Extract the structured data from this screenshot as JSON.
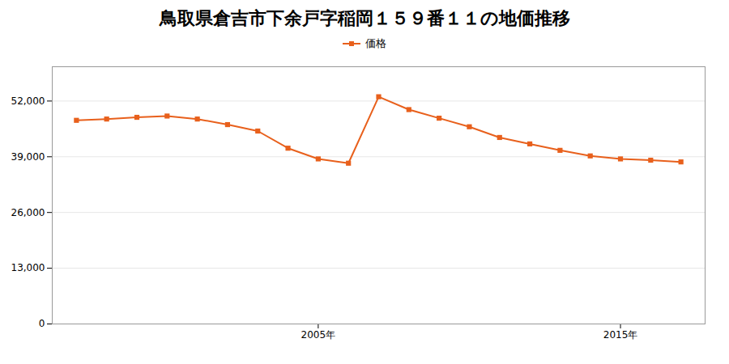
{
  "chart_data": {
    "type": "line",
    "title": "鳥取県倉吉市下余戸字稲岡１５９番１１の地価推移",
    "x": [
      1997,
      1998,
      1999,
      2000,
      2001,
      2002,
      2003,
      2004,
      2005,
      2006,
      2007,
      2008,
      2009,
      2010,
      2011,
      2012,
      2013,
      2014,
      2015,
      2016,
      2017
    ],
    "series": [
      {
        "name": "価格",
        "color": "#e8601c",
        "marker": "square",
        "line_style": "solid",
        "values": [
          47500,
          47800,
          48200,
          48500,
          47800,
          46500,
          45000,
          41000,
          38500,
          37500,
          53000,
          50000,
          48000,
          46000,
          43500,
          42000,
          40500,
          39200,
          38500,
          38200,
          37800
        ]
      }
    ],
    "xlim": [
      1996.2,
      2017.8
    ],
    "xticks": [
      {
        "value": 2005,
        "label": "2005年"
      },
      {
        "value": 2015,
        "label": "2015年"
      }
    ],
    "ylim": [
      0,
      60000
    ],
    "yticks": [
      0,
      {
        "value": 13000,
        "label": "13,000"
      },
      {
        "value": 26000,
        "label": "26,000"
      },
      {
        "value": 39000,
        "label": "39,000"
      },
      {
        "value": 52000,
        "label": "52,000"
      }
    ],
    "grid": true,
    "legend": "top"
  }
}
